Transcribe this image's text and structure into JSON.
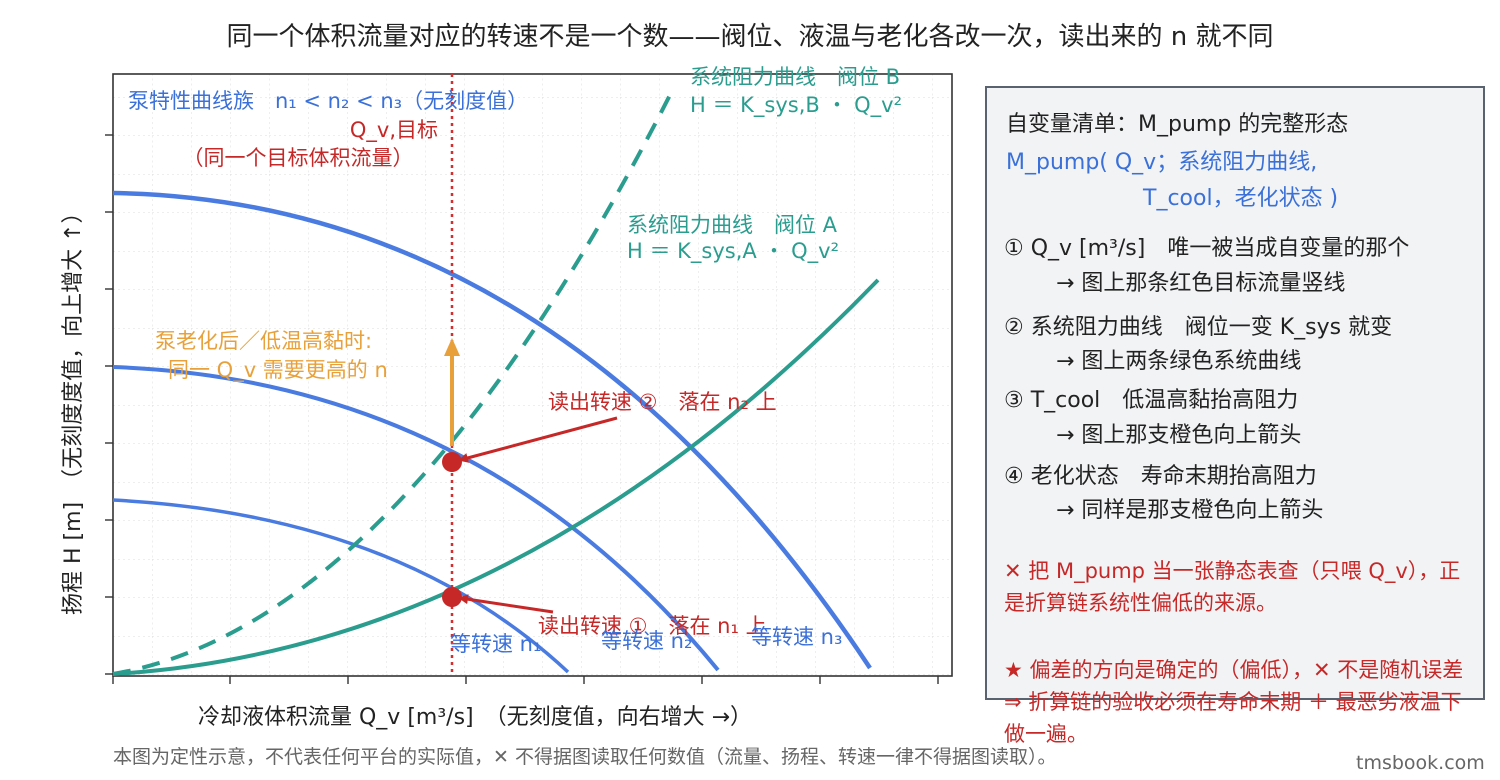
{
  "title": "同一个体积流量对应的转速不是一个数——阀位、液温与老化各改一次，读出来的 n 就不同",
  "axes": {
    "xlabel": "冷却液体积流量 Q_v [m³/s]　（无刻度值，向右增大 →）",
    "ylabel": "扬程 H [m]　（无刻度度值，向上增大 ↑）"
  },
  "plot_labels": {
    "pump_family": "泵特性曲线族　n₁ < n₂ < n₃（无刻度值）",
    "target_line_1": "Q_v,目标",
    "target_line_2": "（同一个目标体积流量）",
    "sys_b_1": "系统阻力曲线　阀位 B",
    "sys_b_2": "H ＝ K_sys,B ・ Q_v²",
    "sys_a_1": "系统阻力曲线　阀位 A",
    "sys_a_2": "H ＝ K_sys,A ・ Q_v²",
    "aging_1": "泵老化后／低温高黏时:",
    "aging_2": "同一 Q_v 需要更高的 n",
    "read_2": "读出转速 ②　落在 n₂ 上",
    "read_1": "读出转速 ①　落在 n₁ 上",
    "speed_n1": "等转速 n₁",
    "speed_n2": "等转速 n₂",
    "speed_n3": "等转速 n₃"
  },
  "panel": {
    "heading": "自变量清单：M_pump 的完整形态",
    "formula_1": "M_pump( Q_v；系统阻力曲线,",
    "formula_2": "T_cool，老化状态 )",
    "item1_a": "① Q_v [m³/s]　唯一被当成自变量的那个",
    "item1_b": "→ 图上那条红色目标流量竖线",
    "item2_a": "② 系统阻力曲线　阀位一变 K_sys 就变",
    "item2_b": "→ 图上两条绿色系统曲线",
    "item3_a": "③ T_cool　低温高黏抬高阻力",
    "item3_b": "→ 图上那支橙色向上箭头",
    "item4_a": "④ 老化状态　寿命末期抬高阻力",
    "item4_b": "→ 同样是那支橙色向上箭头",
    "warn": "✕ 把 M_pump 当一张静态表查（只喂 Q_v），正是折算链系统性偏低的来源。",
    "star": "★ 偏差的方向是确定的（偏低），✕ 不是随机误差 ⇒ 折算链的验收必须在寿命末期 ＋ 最恶劣液温下做一遍。"
  },
  "footnote": "本图为定性示意，不代表任何平台的实际值，✕ 不得据图读取任何数值（流量、扬程、转速一律不得据图读取）。",
  "watermark": "tmsbook.com",
  "colors": {
    "pump": "#4a7be0",
    "system": "#2a9d8f",
    "target": "#d32f2f",
    "arrow_red": "#c62828",
    "aging": "#e8a13a",
    "panel_bg": "#f1f3f5"
  }
}
